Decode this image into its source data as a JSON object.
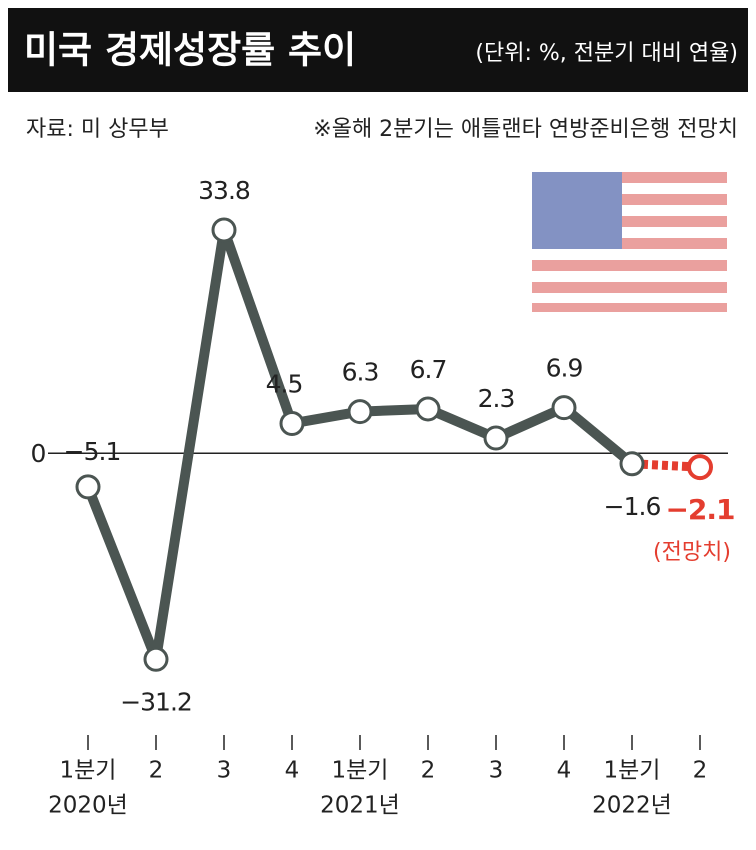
{
  "chart_data": {
    "type": "line",
    "title": "미국 경제성장률 추이",
    "subtitle": "(단위: %, 전분기 대비 연율)",
    "source": "자료: 미 상무부",
    "note": "※올해 2분기는 애틀랜타 연방준비은행 전망치",
    "categories": [
      "1분기",
      "2",
      "3",
      "4",
      "1분기",
      "2",
      "3",
      "4",
      "1분기",
      "2"
    ],
    "years": [
      "2020년",
      "2021년",
      "2022년"
    ],
    "year_positions": [
      0,
      4,
      8
    ],
    "values": [
      -5.1,
      -31.2,
      33.8,
      4.5,
      6.3,
      6.7,
      2.3,
      6.9,
      -1.6,
      -2.1
    ],
    "value_labels": [
      "−5.1",
      "−31.2",
      "33.8",
      "4.5",
      "6.3",
      "6.7",
      "2.3",
      "6.9",
      "−1.6",
      "−2.1"
    ],
    "forecast_label": "(전망치)",
    "forecast_start": 8,
    "color": "#4b5552",
    "forecast_color": "#e43d2f",
    "ylim": [
      -36,
      40
    ],
    "yticks": [
      0
    ]
  }
}
